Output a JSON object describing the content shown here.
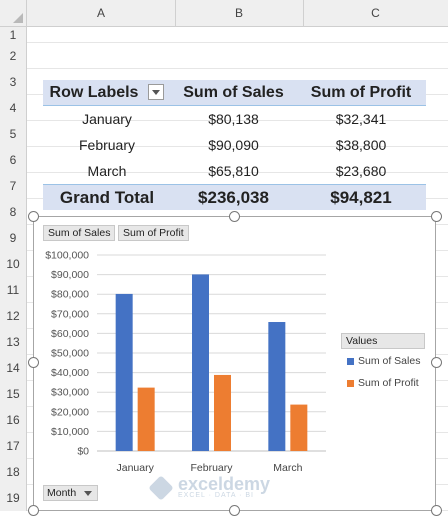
{
  "columns": [
    "A",
    "B",
    "C"
  ],
  "rows": [
    "1",
    "2",
    "3",
    "4",
    "5",
    "6",
    "7",
    "8",
    "9",
    "10",
    "11",
    "12",
    "13",
    "14",
    "15",
    "16",
    "17",
    "18",
    "19"
  ],
  "pivot": {
    "headers": [
      "Row Labels",
      "Sum of Sales",
      "Sum of Profit"
    ],
    "rows": [
      {
        "label": "January",
        "sales": "$80,138",
        "profit": "$32,341"
      },
      {
        "label": "February",
        "sales": "$90,090",
        "profit": "$38,800"
      },
      {
        "label": "March",
        "sales": "$65,810",
        "profit": "$23,680"
      }
    ],
    "total": {
      "label": "Grand Total",
      "sales": "$236,038",
      "profit": "$94,821"
    }
  },
  "chart_data": {
    "type": "bar",
    "categories": [
      "January",
      "February",
      "March"
    ],
    "series": [
      {
        "name": "Sum of Sales",
        "values": [
          80138,
          90090,
          65810
        ],
        "color": "#4472c4"
      },
      {
        "name": "Sum of Profit",
        "values": [
          32341,
          38800,
          23680
        ],
        "color": "#ed7d31"
      }
    ],
    "ylim": [
      0,
      100000
    ],
    "yticks": [
      "$0",
      "$10,000",
      "$20,000",
      "$30,000",
      "$40,000",
      "$50,000",
      "$60,000",
      "$70,000",
      "$80,000",
      "$90,000",
      "$100,000"
    ],
    "grid": true,
    "legend_title": "Values",
    "legend_position": "right",
    "field_buttons": [
      "Sum of Sales",
      "Sum of Profit"
    ],
    "axis_field_button": "Month"
  },
  "watermark": {
    "name": "exceldemy",
    "tagline": "EXCEL · DATA · BI"
  }
}
